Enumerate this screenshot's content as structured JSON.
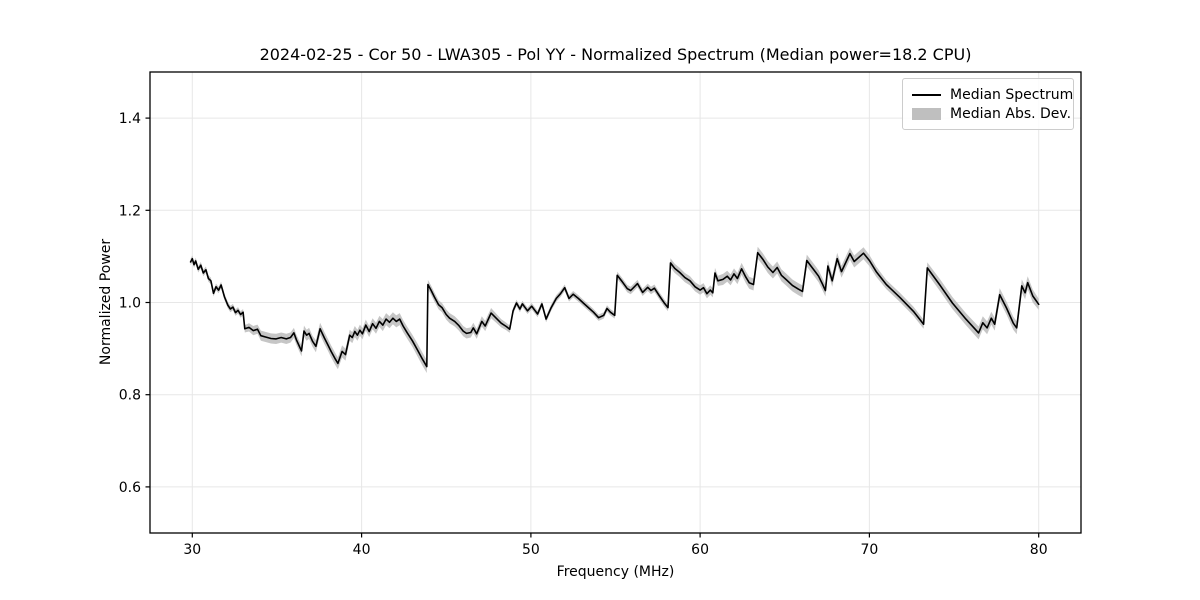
{
  "figure": {
    "title": "2024-02-25 - Cor 50 - LWA305 - Pol YY - Normalized Spectrum (Median power=18.2 CPU)"
  },
  "legend": {
    "entries": [
      {
        "label": "Median Spectrum",
        "type": "line",
        "color": "#000000"
      },
      {
        "label": "Median Abs. Dev.",
        "type": "patch",
        "color": "#bfbfbf"
      }
    ]
  },
  "colors": {
    "line": "#000000",
    "band": "#c0c0c0",
    "grid": "#e7e7e7",
    "spine": "#000000",
    "tick": "#000000"
  },
  "chart_data": {
    "type": "line",
    "title": "2024-02-25 - Cor 50 - LWA305 - Pol YY - Normalized Spectrum (Median power=18.2 CPU)",
    "xlabel": "Frequency (MHz)",
    "ylabel": "Normalized Power",
    "xlim": [
      27.5,
      82.5
    ],
    "ylim": [
      0.5,
      1.5
    ],
    "x_ticks": [
      30,
      40,
      50,
      60,
      70,
      80
    ],
    "x_tick_labels": [
      "30",
      "40",
      "50",
      "60",
      "70",
      "80"
    ],
    "y_ticks": [
      0.6,
      0.8,
      1.0,
      1.2,
      1.4
    ],
    "y_tick_labels": [
      "0.6",
      "0.8",
      "1.0",
      "1.2",
      "1.4"
    ],
    "grid": true,
    "legend_position": "upper right",
    "series": [
      {
        "name": "Median Spectrum",
        "band_name": "Median Abs. Dev.",
        "points_format": [
          "frequency_mhz",
          "normalized_power",
          "median_abs_dev"
        ],
        "points": [
          [
            29.9,
            1.088,
            0.007
          ],
          [
            30.0,
            1.095,
            0.007
          ],
          [
            30.1,
            1.082,
            0.007
          ],
          [
            30.2,
            1.09,
            0.007
          ],
          [
            30.35,
            1.072,
            0.007
          ],
          [
            30.5,
            1.081,
            0.007
          ],
          [
            30.65,
            1.064,
            0.007
          ],
          [
            30.8,
            1.071,
            0.007
          ],
          [
            30.95,
            1.052,
            0.007
          ],
          [
            31.1,
            1.047,
            0.007
          ],
          [
            31.25,
            1.02,
            0.007
          ],
          [
            31.4,
            1.034,
            0.007
          ],
          [
            31.55,
            1.027,
            0.007
          ],
          [
            31.7,
            1.038,
            0.007
          ],
          [
            31.9,
            1.012,
            0.007
          ],
          [
            32.1,
            0.994,
            0.007
          ],
          [
            32.25,
            0.986,
            0.007
          ],
          [
            32.4,
            0.99,
            0.007
          ],
          [
            32.55,
            0.978,
            0.007
          ],
          [
            32.7,
            0.983,
            0.007
          ],
          [
            32.85,
            0.974,
            0.007
          ],
          [
            33.0,
            0.979,
            0.007
          ],
          [
            33.1,
            0.943,
            0.008
          ],
          [
            33.35,
            0.946,
            0.009
          ],
          [
            33.6,
            0.939,
            0.01
          ],
          [
            33.85,
            0.942,
            0.01
          ],
          [
            34.05,
            0.928,
            0.011
          ],
          [
            34.35,
            0.925,
            0.011
          ],
          [
            34.65,
            0.922,
            0.011
          ],
          [
            34.95,
            0.921,
            0.011
          ],
          [
            35.25,
            0.924,
            0.011
          ],
          [
            35.55,
            0.921,
            0.011
          ],
          [
            35.8,
            0.924,
            0.011
          ],
          [
            36.0,
            0.934,
            0.011
          ],
          [
            36.15,
            0.919,
            0.011
          ],
          [
            36.45,
            0.895,
            0.012
          ],
          [
            36.6,
            0.938,
            0.012
          ],
          [
            36.75,
            0.929,
            0.012
          ],
          [
            36.9,
            0.933,
            0.012
          ],
          [
            37.1,
            0.916,
            0.012
          ],
          [
            37.3,
            0.905,
            0.013
          ],
          [
            37.55,
            0.943,
            0.013
          ],
          [
            37.8,
            0.923,
            0.013
          ],
          [
            38.0,
            0.909,
            0.013
          ],
          [
            38.2,
            0.894,
            0.013
          ],
          [
            38.45,
            0.877,
            0.013
          ],
          [
            38.6,
            0.868,
            0.013
          ],
          [
            38.85,
            0.894,
            0.013
          ],
          [
            39.05,
            0.887,
            0.013
          ],
          [
            39.3,
            0.929,
            0.012
          ],
          [
            39.45,
            0.924,
            0.012
          ],
          [
            39.6,
            0.937,
            0.012
          ],
          [
            39.75,
            0.929,
            0.012
          ],
          [
            39.9,
            0.94,
            0.012
          ],
          [
            40.05,
            0.932,
            0.012
          ],
          [
            40.25,
            0.951,
            0.012
          ],
          [
            40.45,
            0.937,
            0.012
          ],
          [
            40.65,
            0.954,
            0.012
          ],
          [
            40.85,
            0.944,
            0.012
          ],
          [
            41.05,
            0.959,
            0.012
          ],
          [
            41.25,
            0.951,
            0.013
          ],
          [
            41.45,
            0.964,
            0.013
          ],
          [
            41.65,
            0.957,
            0.013
          ],
          [
            41.85,
            0.966,
            0.013
          ],
          [
            42.05,
            0.959,
            0.013
          ],
          [
            42.25,
            0.964,
            0.013
          ],
          [
            42.45,
            0.949,
            0.013
          ],
          [
            42.7,
            0.934,
            0.013
          ],
          [
            43.0,
            0.917,
            0.013
          ],
          [
            43.3,
            0.897,
            0.014
          ],
          [
            43.6,
            0.877,
            0.014
          ],
          [
            43.85,
            0.861,
            0.014
          ],
          [
            43.92,
            1.039,
            0.01
          ],
          [
            44.1,
            1.027,
            0.01
          ],
          [
            44.3,
            1.012,
            0.01
          ],
          [
            44.55,
            0.995,
            0.01
          ],
          [
            44.75,
            0.989,
            0.01
          ],
          [
            45.0,
            0.974,
            0.011
          ],
          [
            45.2,
            0.966,
            0.011
          ],
          [
            45.5,
            0.959,
            0.011
          ],
          [
            45.75,
            0.95,
            0.011
          ],
          [
            46.0,
            0.938,
            0.011
          ],
          [
            46.2,
            0.933,
            0.011
          ],
          [
            46.45,
            0.935,
            0.011
          ],
          [
            46.6,
            0.945,
            0.011
          ],
          [
            46.8,
            0.932,
            0.011
          ],
          [
            47.1,
            0.959,
            0.011
          ],
          [
            47.3,
            0.949,
            0.011
          ],
          [
            47.65,
            0.977,
            0.011
          ],
          [
            47.95,
            0.966,
            0.01
          ],
          [
            48.25,
            0.955,
            0.009
          ],
          [
            48.55,
            0.948,
            0.008
          ],
          [
            48.75,
            0.942,
            0.008
          ],
          [
            48.95,
            0.982,
            0.007
          ],
          [
            49.15,
            0.999,
            0.007
          ],
          [
            49.35,
            0.986,
            0.007
          ],
          [
            49.5,
            0.997,
            0.007
          ],
          [
            49.8,
            0.982,
            0.007
          ],
          [
            50.05,
            0.992,
            0.007
          ],
          [
            50.4,
            0.975,
            0.007
          ],
          [
            50.65,
            0.997,
            0.007
          ],
          [
            50.9,
            0.964,
            0.007
          ],
          [
            51.2,
            0.989,
            0.007
          ],
          [
            51.5,
            1.009,
            0.007
          ],
          [
            51.75,
            1.019,
            0.007
          ],
          [
            52.0,
            1.032,
            0.007
          ],
          [
            52.25,
            1.009,
            0.007
          ],
          [
            52.5,
            1.018,
            0.007
          ],
          [
            52.8,
            1.009,
            0.007
          ],
          [
            53.1,
            0.999,
            0.007
          ],
          [
            53.4,
            0.989,
            0.007
          ],
          [
            53.7,
            0.979,
            0.007
          ],
          [
            54.0,
            0.967,
            0.007
          ],
          [
            54.3,
            0.972,
            0.007
          ],
          [
            54.5,
            0.987,
            0.007
          ],
          [
            54.7,
            0.979,
            0.007
          ],
          [
            54.95,
            0.972,
            0.007
          ],
          [
            55.1,
            1.059,
            0.008
          ],
          [
            55.4,
            1.045,
            0.008
          ],
          [
            55.7,
            1.03,
            0.008
          ],
          [
            55.9,
            1.026,
            0.008
          ],
          [
            56.3,
            1.041,
            0.008
          ],
          [
            56.6,
            1.022,
            0.008
          ],
          [
            56.9,
            1.033,
            0.008
          ],
          [
            57.1,
            1.026,
            0.008
          ],
          [
            57.3,
            1.031,
            0.008
          ],
          [
            57.6,
            1.014,
            0.008
          ],
          [
            57.9,
            0.998,
            0.008
          ],
          [
            58.1,
            0.989,
            0.008
          ],
          [
            58.25,
            1.086,
            0.01
          ],
          [
            58.5,
            1.074,
            0.01
          ],
          [
            58.8,
            1.065,
            0.01
          ],
          [
            59.1,
            1.054,
            0.01
          ],
          [
            59.4,
            1.047,
            0.01
          ],
          [
            59.7,
            1.034,
            0.01
          ],
          [
            60.0,
            1.027,
            0.01
          ],
          [
            60.2,
            1.032,
            0.01
          ],
          [
            60.4,
            1.019,
            0.01
          ],
          [
            60.6,
            1.027,
            0.01
          ],
          [
            60.75,
            1.021,
            0.01
          ],
          [
            60.88,
            1.064,
            0.011
          ],
          [
            61.05,
            1.047,
            0.011
          ],
          [
            61.35,
            1.05,
            0.012
          ],
          [
            61.6,
            1.057,
            0.012
          ],
          [
            61.8,
            1.049,
            0.012
          ],
          [
            62.0,
            1.062,
            0.012
          ],
          [
            62.2,
            1.052,
            0.012
          ],
          [
            62.45,
            1.073,
            0.013
          ],
          [
            62.7,
            1.055,
            0.013
          ],
          [
            62.9,
            1.043,
            0.013
          ],
          [
            63.15,
            1.039,
            0.013
          ],
          [
            63.4,
            1.108,
            0.013
          ],
          [
            63.7,
            1.094,
            0.013
          ],
          [
            64.0,
            1.077,
            0.013
          ],
          [
            64.3,
            1.065,
            0.013
          ],
          [
            64.55,
            1.076,
            0.013
          ],
          [
            64.8,
            1.059,
            0.013
          ],
          [
            65.1,
            1.049,
            0.013
          ],
          [
            65.45,
            1.037,
            0.013
          ],
          [
            65.8,
            1.029,
            0.013
          ],
          [
            66.05,
            1.024,
            0.013
          ],
          [
            66.3,
            1.091,
            0.013
          ],
          [
            66.55,
            1.079,
            0.013
          ],
          [
            66.8,
            1.067,
            0.013
          ],
          [
            67.0,
            1.057,
            0.013
          ],
          [
            67.2,
            1.042,
            0.013
          ],
          [
            67.4,
            1.026,
            0.013
          ],
          [
            67.55,
            1.079,
            0.013
          ],
          [
            67.8,
            1.047,
            0.013
          ],
          [
            68.1,
            1.095,
            0.013
          ],
          [
            68.35,
            1.067,
            0.013
          ],
          [
            68.85,
            1.106,
            0.013
          ],
          [
            69.1,
            1.089,
            0.013
          ],
          [
            69.65,
            1.107,
            0.013
          ],
          [
            70.0,
            1.091,
            0.012
          ],
          [
            70.4,
            1.067,
            0.011
          ],
          [
            71.0,
            1.039,
            0.01
          ],
          [
            71.8,
            1.011,
            0.01
          ],
          [
            72.6,
            0.981,
            0.01
          ],
          [
            73.2,
            0.953,
            0.01
          ],
          [
            73.42,
            1.075,
            0.012
          ],
          [
            74.2,
            1.036,
            0.013
          ],
          [
            74.9,
            0.999,
            0.013
          ],
          [
            75.7,
            0.964,
            0.013
          ],
          [
            76.45,
            0.934,
            0.014
          ],
          [
            76.7,
            0.956,
            0.014
          ],
          [
            76.95,
            0.945,
            0.014
          ],
          [
            77.2,
            0.966,
            0.014
          ],
          [
            77.4,
            0.953,
            0.014
          ],
          [
            77.7,
            1.017,
            0.014
          ],
          [
            78.1,
            0.988,
            0.014
          ],
          [
            78.5,
            0.955,
            0.014
          ],
          [
            78.7,
            0.945,
            0.014
          ],
          [
            79.0,
            1.036,
            0.014
          ],
          [
            79.2,
            1.021,
            0.014
          ],
          [
            79.35,
            1.043,
            0.014
          ],
          [
            79.65,
            1.014,
            0.014
          ],
          [
            80.0,
            0.996,
            0.012
          ]
        ]
      }
    ]
  }
}
